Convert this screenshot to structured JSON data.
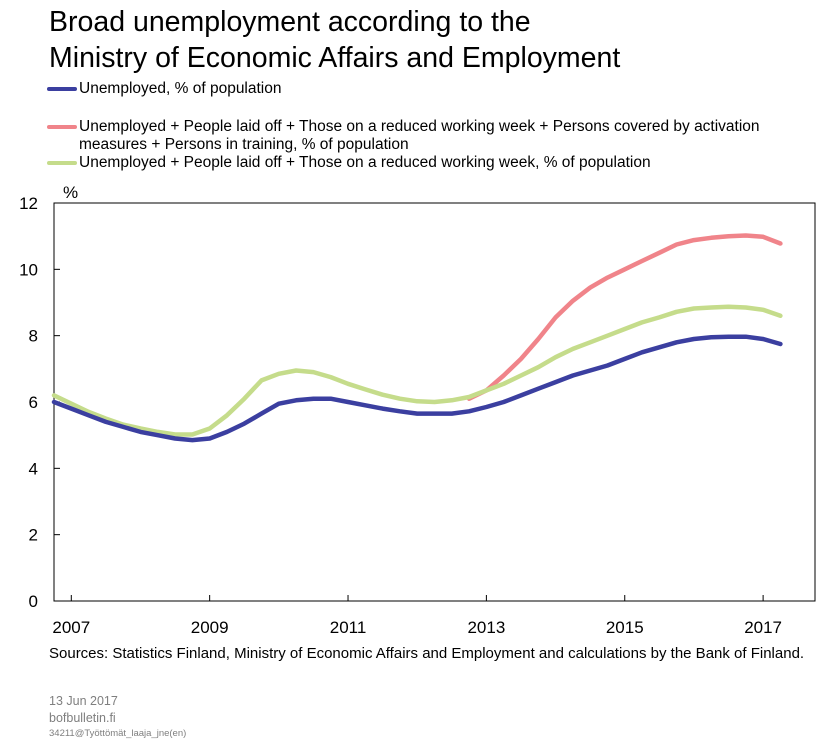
{
  "title_lines": [
    "Broad unemployment according to the",
    "Ministry of Economic Affairs and Employment"
  ],
  "chart_data": {
    "type": "line",
    "title": "Broad unemployment according to the Ministry of Economic Affairs and Employment",
    "ylabel": "%",
    "xlabel": "",
    "ylim": [
      0,
      12
    ],
    "yticks": [
      0,
      2,
      4,
      6,
      8,
      10,
      12
    ],
    "xlim": [
      2006.75,
      2017.75
    ],
    "xticks": [
      2007,
      2009,
      2011,
      2013,
      2015,
      2017
    ],
    "grid": false,
    "legend_position": "top",
    "series": [
      {
        "name": "Unemployed, % of population",
        "color": "#3b3fa0",
        "x": [
          2006.75,
          2007.0,
          2007.25,
          2007.5,
          2007.75,
          2008.0,
          2008.25,
          2008.5,
          2008.75,
          2009.0,
          2009.25,
          2009.5,
          2009.75,
          2010.0,
          2010.25,
          2010.5,
          2010.75,
          2011.0,
          2011.25,
          2011.5,
          2011.75,
          2012.0,
          2012.25,
          2012.5,
          2012.75,
          2013.0,
          2013.25,
          2013.5,
          2013.75,
          2014.0,
          2014.25,
          2014.5,
          2014.75,
          2015.0,
          2015.25,
          2015.5,
          2015.75,
          2016.0,
          2016.25,
          2016.5,
          2016.75,
          2017.0,
          2017.25
        ],
        "y": [
          6.0,
          5.8,
          5.6,
          5.4,
          5.25,
          5.1,
          5.0,
          4.9,
          4.85,
          4.9,
          5.1,
          5.35,
          5.65,
          5.95,
          6.05,
          6.1,
          6.1,
          6.0,
          5.9,
          5.8,
          5.72,
          5.65,
          5.65,
          5.65,
          5.72,
          5.85,
          6.0,
          6.2,
          6.4,
          6.6,
          6.8,
          6.95,
          7.1,
          7.3,
          7.5,
          7.65,
          7.8,
          7.9,
          7.95,
          7.97,
          7.97,
          7.9,
          7.75
        ]
      },
      {
        "name": "Unemployed + People laid off + Those on a reduced working week + Persons covered by activation measures + Persons in training, % of population",
        "color": "#f0848a",
        "x": [
          2012.75,
          2013.0,
          2013.25,
          2013.5,
          2013.75,
          2014.0,
          2014.25,
          2014.5,
          2014.75,
          2015.0,
          2015.25,
          2015.5,
          2015.75,
          2016.0,
          2016.25,
          2016.5,
          2016.75,
          2017.0,
          2017.25
        ],
        "y": [
          6.1,
          6.35,
          6.8,
          7.3,
          7.9,
          8.55,
          9.05,
          9.45,
          9.75,
          10.0,
          10.25,
          10.5,
          10.75,
          10.88,
          10.95,
          11.0,
          11.02,
          10.98,
          10.78
        ]
      },
      {
        "name": "Unemployed + People laid off + Those on a reduced working week, % of population",
        "color": "#c5dc8b",
        "x": [
          2006.75,
          2007.0,
          2007.25,
          2007.5,
          2007.75,
          2008.0,
          2008.25,
          2008.5,
          2008.75,
          2009.0,
          2009.25,
          2009.5,
          2009.75,
          2010.0,
          2010.25,
          2010.5,
          2010.75,
          2011.0,
          2011.25,
          2011.5,
          2011.75,
          2012.0,
          2012.25,
          2012.5,
          2012.75,
          2013.0,
          2013.25,
          2013.5,
          2013.75,
          2014.0,
          2014.25,
          2014.5,
          2014.75,
          2015.0,
          2015.25,
          2015.5,
          2015.75,
          2016.0,
          2016.25,
          2016.5,
          2016.75,
          2017.0,
          2017.25
        ],
        "y": [
          6.2,
          5.95,
          5.7,
          5.5,
          5.32,
          5.2,
          5.1,
          5.02,
          5.02,
          5.2,
          5.6,
          6.1,
          6.65,
          6.85,
          6.95,
          6.9,
          6.75,
          6.55,
          6.38,
          6.22,
          6.1,
          6.02,
          6.0,
          6.05,
          6.15,
          6.35,
          6.55,
          6.8,
          7.05,
          7.35,
          7.6,
          7.8,
          8.0,
          8.2,
          8.4,
          8.55,
          8.72,
          8.82,
          8.85,
          8.87,
          8.85,
          8.78,
          8.6
        ]
      }
    ]
  },
  "sources": "Sources: Statistics Finland, Ministry of Economic Affairs and Employment and calculations by the Bank of Finland.",
  "footer": {
    "date": "13 Jun 2017",
    "site": "bofbulletin.fi",
    "code": "34211@Työttömät_laaja_jne(en)"
  }
}
